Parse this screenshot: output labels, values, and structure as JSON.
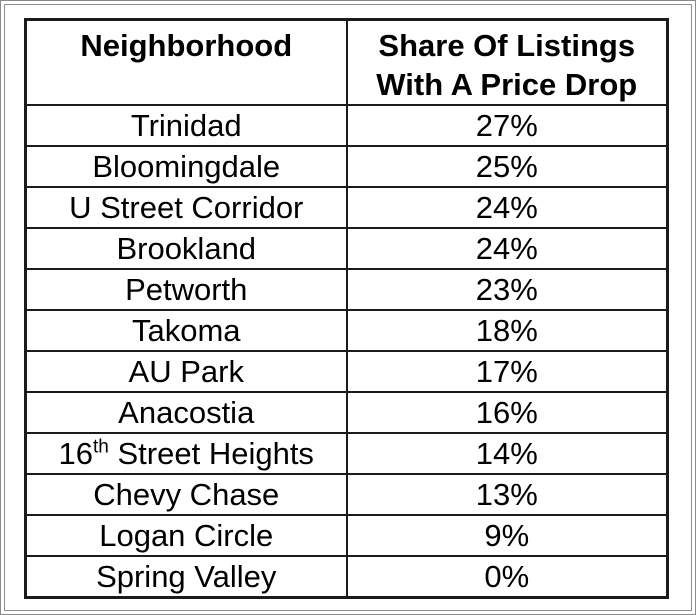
{
  "colors": {
    "background": "#ffffff",
    "table_border": "#1b1b1b",
    "frame_border": "#8a8a8a",
    "text": "#000000"
  },
  "chart_data": {
    "type": "table",
    "columns": [
      "Neighborhood",
      "Share Of Listings With A Price Drop"
    ],
    "rows": [
      {
        "neighborhood": "Trinidad",
        "share_label": "27%",
        "share_pct": 27
      },
      {
        "neighborhood": "Bloomingdale",
        "share_label": "25%",
        "share_pct": 25
      },
      {
        "neighborhood": "U Street Corridor",
        "share_label": "24%",
        "share_pct": 24
      },
      {
        "neighborhood": "Brookland",
        "share_label": "24%",
        "share_pct": 24
      },
      {
        "neighborhood": "Petworth",
        "share_label": "23%",
        "share_pct": 23
      },
      {
        "neighborhood": "Takoma",
        "share_label": "18%",
        "share_pct": 18
      },
      {
        "neighborhood": "AU Park",
        "share_label": "17%",
        "share_pct": 17
      },
      {
        "neighborhood": "Anacostia",
        "share_label": "16%",
        "share_pct": 16
      },
      {
        "neighborhood": "16th Street Heights",
        "neighborhood_parts": {
          "pre": "16",
          "sup": "th",
          "post": " Street Heights"
        },
        "share_label": "14%",
        "share_pct": 14
      },
      {
        "neighborhood": "Chevy Chase",
        "share_label": "13%",
        "share_pct": 13
      },
      {
        "neighborhood": "Logan Circle",
        "share_label": "9%",
        "share_pct": 9
      },
      {
        "neighborhood": "Spring Valley",
        "share_label": "0%",
        "share_pct": 0
      }
    ]
  }
}
